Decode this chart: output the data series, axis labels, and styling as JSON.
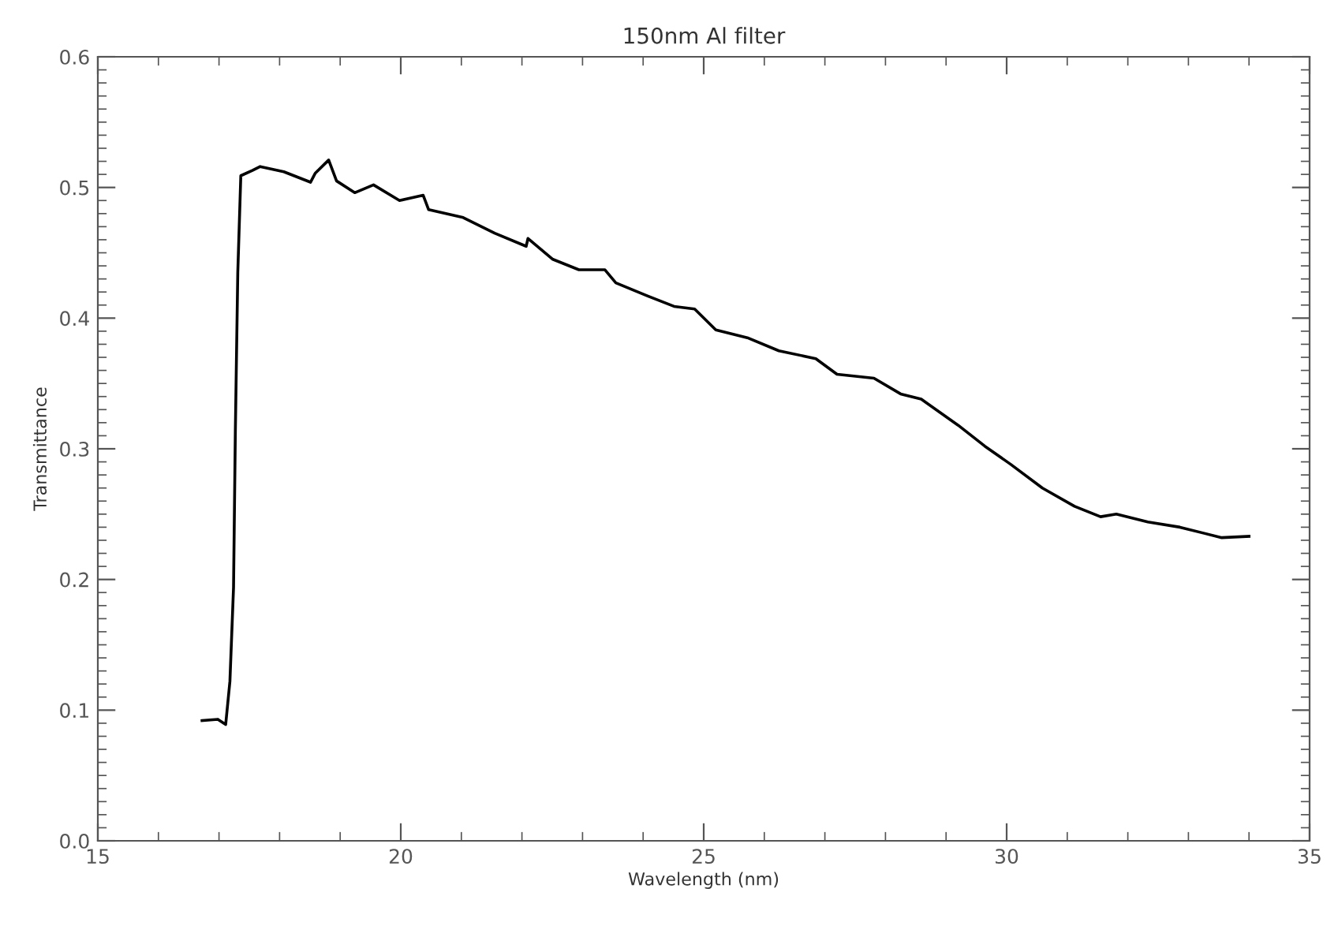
{
  "chart_data": {
    "type": "line",
    "title": "150nm Al filter",
    "xlabel": "Wavelength (nm)",
    "ylabel": "Transmittance",
    "x": [
      16.72,
      16.98,
      17.11,
      17.18,
      17.24,
      17.27,
      17.31,
      17.36,
      17.55,
      17.68,
      18.07,
      18.51,
      18.59,
      18.81,
      18.94,
      19.24,
      19.55,
      19.98,
      20.37,
      20.46,
      21.03,
      21.55,
      22.07,
      22.1,
      22.51,
      22.94,
      23.37,
      23.55,
      24.07,
      24.51,
      24.85,
      25.2,
      25.72,
      26.24,
      26.85,
      27.2,
      27.81,
      28.25,
      28.59,
      29.2,
      29.64,
      30.07,
      30.59,
      31.12,
      31.55,
      31.81,
      32.33,
      32.86,
      33.55,
      34.0
    ],
    "series": [
      {
        "color": "#000000",
        "values": [
          0.092,
          0.093,
          0.089,
          0.122,
          0.194,
          0.314,
          0.435,
          0.509,
          0.513,
          0.516,
          0.512,
          0.504,
          0.511,
          0.521,
          0.505,
          0.496,
          0.502,
          0.49,
          0.494,
          0.483,
          0.477,
          0.465,
          0.455,
          0.461,
          0.445,
          0.437,
          0.437,
          0.427,
          0.417,
          0.409,
          0.407,
          0.391,
          0.385,
          0.375,
          0.369,
          0.357,
          0.354,
          0.342,
          0.338,
          0.318,
          0.302,
          0.288,
          0.27,
          0.256,
          0.248,
          0.25,
          0.244,
          0.24,
          0.232,
          0.233
        ]
      }
    ],
    "xlim": [
      15,
      35
    ],
    "xticks": [
      15,
      20,
      25,
      30,
      35
    ],
    "ylim": [
      0,
      0.6
    ],
    "yticks": [
      {
        "value": 0,
        "label": "0.0"
      },
      {
        "value": 0.1,
        "label": "0.1"
      },
      {
        "value": 0.2,
        "label": "0.2"
      },
      {
        "value": 0.3,
        "label": "0.3"
      },
      {
        "value": 0.4,
        "label": "0.4"
      },
      {
        "value": 0.5,
        "label": "0.5"
      },
      {
        "value": 0.6,
        "label": "0.6"
      }
    ],
    "grid": false,
    "marker": "none",
    "line_style": "solid"
  }
}
